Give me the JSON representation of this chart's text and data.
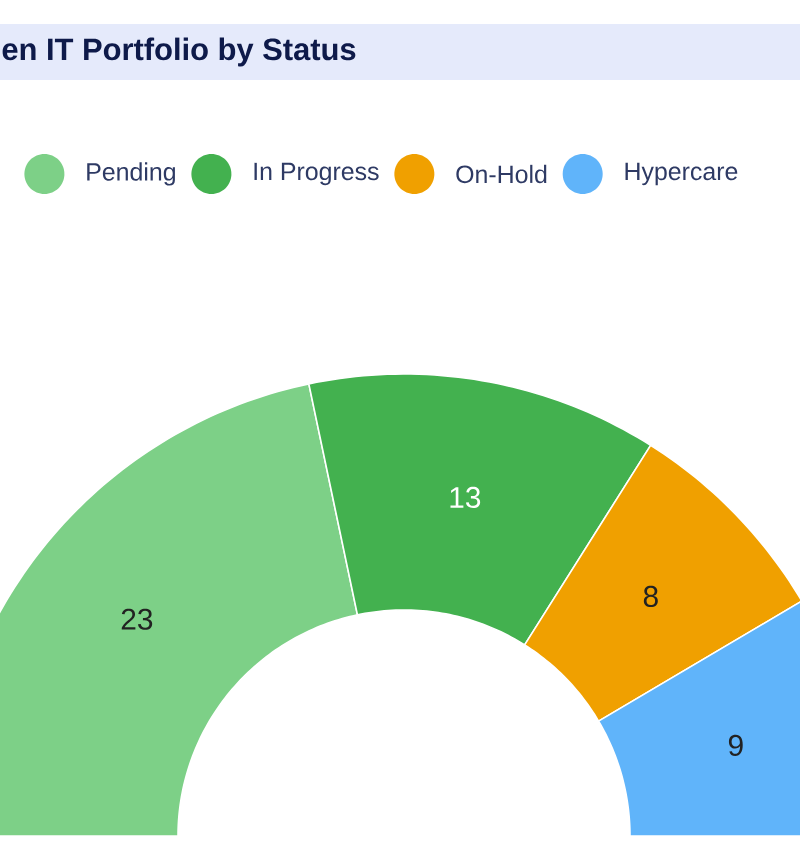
{
  "chart_data": {
    "type": "donut",
    "title": "en IT Portfolio by Status",
    "categories": [
      "Pending",
      "In Progress",
      "On-Hold",
      "Hypercare"
    ],
    "values": [
      23,
      13,
      8,
      9
    ],
    "colors": [
      "#7dd087",
      "#43b14f",
      "#f0a000",
      "#60b4fa"
    ],
    "data_labels": true,
    "legend": "top"
  }
}
